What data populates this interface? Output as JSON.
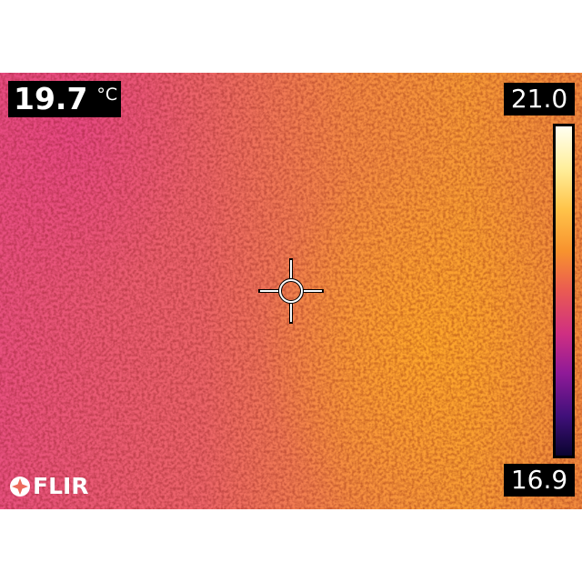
{
  "spot": {
    "value": "19.7",
    "unit": "°C"
  },
  "scale": {
    "max": "21.0",
    "min": "16.9",
    "palette": [
      "#fffff0",
      "#ffee9a",
      "#ffc44a",
      "#f8922e",
      "#ea5a52",
      "#cf2f82",
      "#8f1a98",
      "#40107a",
      "#0a0430"
    ]
  },
  "logo": {
    "text": "FLIR"
  },
  "icons": {
    "crosshair": "crosshair-icon",
    "logo_mark": "flir-logo-icon"
  }
}
